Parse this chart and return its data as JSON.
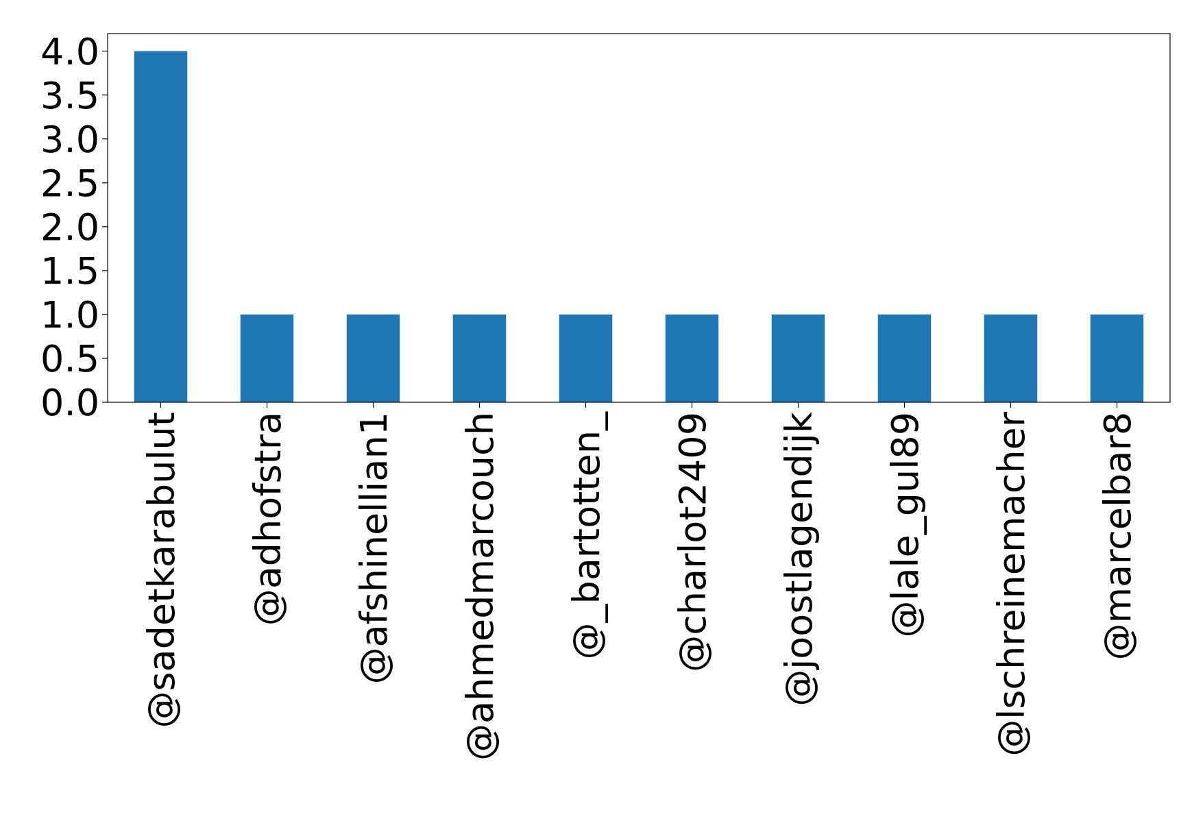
{
  "chart_data": {
    "type": "bar",
    "categories": [
      "@sadetkarabulut",
      "@adhofstra",
      "@afshinellian1",
      "@ahmedmarcouch",
      "@_bartotten_",
      "@charlot2409",
      "@joostlagendijk",
      "@lale_gul89",
      "@lschreinemacher",
      "@marcelbar8"
    ],
    "values": [
      4,
      1,
      1,
      1,
      1,
      1,
      1,
      1,
      1,
      1
    ],
    "color": "#1f77b4",
    "ylim": [
      0,
      4.2
    ],
    "yticks": [
      {
        "value": 0,
        "label": "0.0"
      },
      {
        "value": 0.5,
        "label": "0.5"
      },
      {
        "value": 1,
        "label": "1.0"
      },
      {
        "value": 1.5,
        "label": "1.5"
      },
      {
        "value": 2,
        "label": "2.0"
      },
      {
        "value": 2.5,
        "label": "2.5"
      },
      {
        "value": 3,
        "label": "3.0"
      },
      {
        "value": 3.5,
        "label": "3.5"
      },
      {
        "value": 4,
        "label": "4.0"
      }
    ],
    "grid": false
  }
}
